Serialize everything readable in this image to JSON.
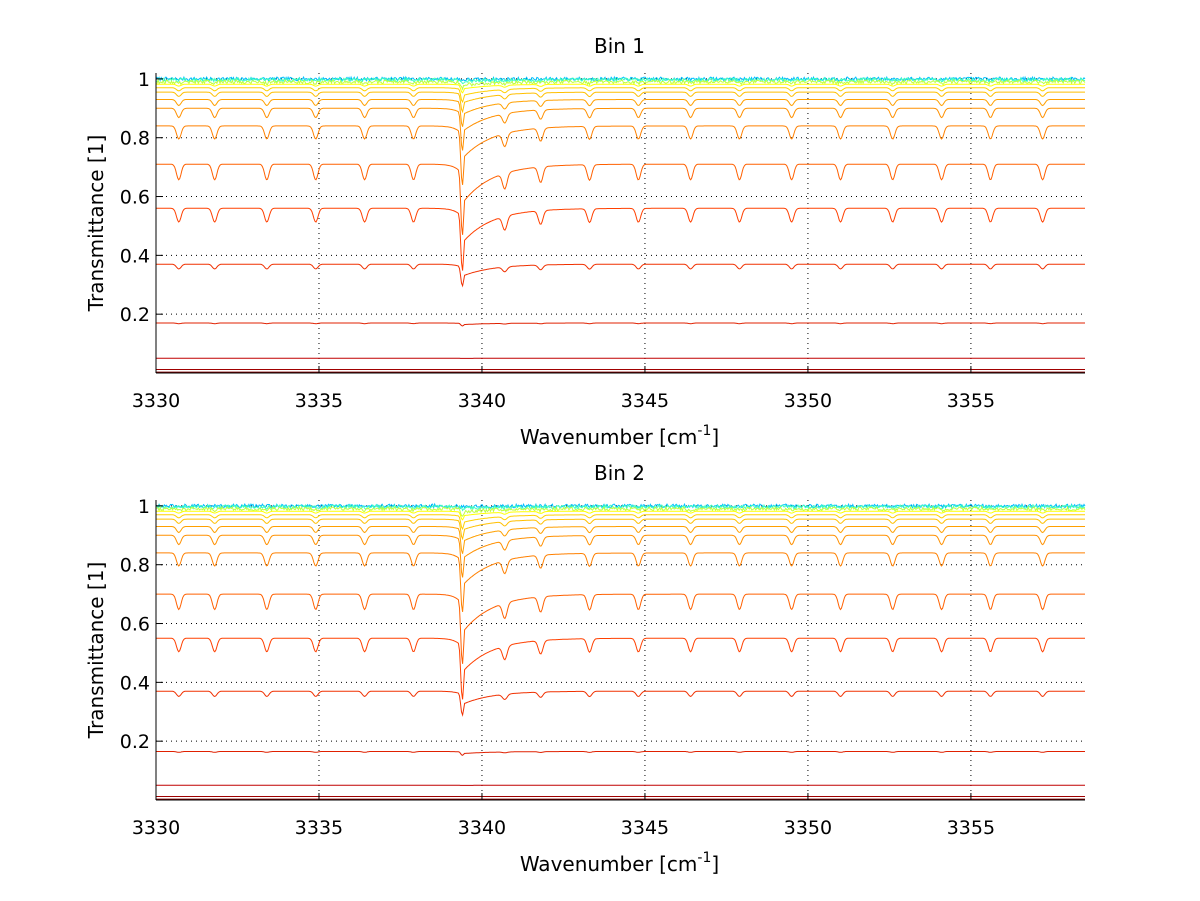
{
  "chart_data": [
    {
      "type": "line",
      "title": "Bin 1",
      "xlabel": "Wavenumber [cm",
      "xlabel_sup": "-1",
      "xlabel_suffix": "]",
      "ylabel": "Transmittance [1]",
      "xlim": [
        3330,
        3358.5
      ],
      "ylim": [
        0,
        1.02
      ],
      "xticks": [
        3330,
        3335,
        3340,
        3345,
        3350,
        3355
      ],
      "xtick_labels": [
        "3330",
        "3335",
        "3340",
        "3345",
        "3350",
        "3355"
      ],
      "yticks": [
        0.2,
        0.4,
        0.6,
        0.8,
        1
      ],
      "ytick_labels": [
        "0.2",
        "0.4",
        "0.6",
        "0.8",
        "1"
      ],
      "grid": true,
      "main_line_x": 3339.4,
      "series": [
        {
          "baseline": 1.0,
          "color": "#00c0ff",
          "depth": 0.005
        },
        {
          "baseline": 0.997,
          "color": "#40ffbf",
          "depth": 0.01
        },
        {
          "baseline": 0.99,
          "color": "#bfff40",
          "depth": 0.02
        },
        {
          "baseline": 0.982,
          "color": "#ffff00",
          "depth": 0.03
        },
        {
          "baseline": 0.97,
          "color": "#ffd000",
          "depth": 0.05
        },
        {
          "baseline": 0.955,
          "color": "#ffbf00",
          "depth": 0.07
        },
        {
          "baseline": 0.93,
          "color": "#ffa000",
          "depth": 0.1
        },
        {
          "baseline": 0.9,
          "color": "#ff9000",
          "depth": 0.16
        },
        {
          "baseline": 0.84,
          "color": "#ff8000",
          "depth": 0.24
        },
        {
          "baseline": 0.71,
          "color": "#ff6000",
          "depth": 0.34
        },
        {
          "baseline": 0.56,
          "color": "#ff4000",
          "depth": 0.38
        },
        {
          "baseline": 0.37,
          "color": "#f03000",
          "depth": 0.2
        },
        {
          "baseline": 0.17,
          "color": "#e02000",
          "depth": 0.06
        },
        {
          "baseline": 0.05,
          "color": "#c00000",
          "depth": 0.01
        },
        {
          "baseline": 0.012,
          "color": "#a00000",
          "depth": 0.002
        },
        {
          "baseline": 0.003,
          "color": "#800000",
          "depth": 0.0
        }
      ]
    },
    {
      "type": "line",
      "title": "Bin 2",
      "xlabel": "Wavenumber [cm",
      "xlabel_sup": "-1",
      "xlabel_suffix": "]",
      "ylabel": "Transmittance [1]",
      "xlim": [
        3330,
        3358.5
      ],
      "ylim": [
        0,
        1.02
      ],
      "xticks": [
        3330,
        3335,
        3340,
        3345,
        3350,
        3355
      ],
      "xtick_labels": [
        "3330",
        "3335",
        "3340",
        "3345",
        "3350",
        "3355"
      ],
      "yticks": [
        0.2,
        0.4,
        0.6,
        0.8,
        1
      ],
      "ytick_labels": [
        "0.2",
        "0.4",
        "0.6",
        "0.8",
        "1"
      ],
      "grid": true,
      "main_line_x": 3339.4,
      "series": [
        {
          "baseline": 1.0,
          "color": "#00c0ff",
          "depth": 0.005
        },
        {
          "baseline": 0.997,
          "color": "#40ffbf",
          "depth": 0.01
        },
        {
          "baseline": 0.99,
          "color": "#bfff40",
          "depth": 0.02
        },
        {
          "baseline": 0.982,
          "color": "#ffff00",
          "depth": 0.03
        },
        {
          "baseline": 0.97,
          "color": "#ffd000",
          "depth": 0.05
        },
        {
          "baseline": 0.955,
          "color": "#ffbf00",
          "depth": 0.07
        },
        {
          "baseline": 0.93,
          "color": "#ffa000",
          "depth": 0.1
        },
        {
          "baseline": 0.9,
          "color": "#ff9000",
          "depth": 0.16
        },
        {
          "baseline": 0.84,
          "color": "#ff8000",
          "depth": 0.24
        },
        {
          "baseline": 0.7,
          "color": "#ff6000",
          "depth": 0.34
        },
        {
          "baseline": 0.55,
          "color": "#ff4000",
          "depth": 0.38
        },
        {
          "baseline": 0.37,
          "color": "#f03000",
          "depth": 0.22
        },
        {
          "baseline": 0.165,
          "color": "#e02000",
          "depth": 0.08
        },
        {
          "baseline": 0.05,
          "color": "#c00000",
          "depth": 0.01
        },
        {
          "baseline": 0.012,
          "color": "#a00000",
          "depth": 0.002
        },
        {
          "baseline": 0.003,
          "color": "#800000",
          "depth": 0.0
        }
      ]
    }
  ]
}
